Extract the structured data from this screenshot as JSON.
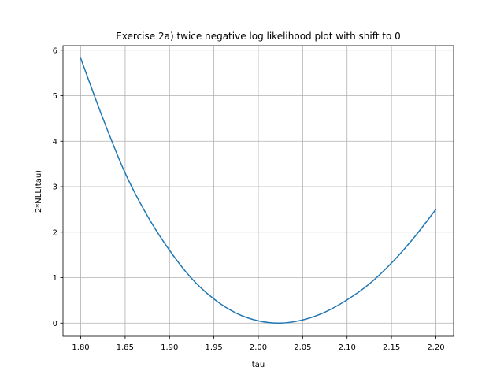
{
  "chart_data": {
    "type": "line",
    "title": "Exercise 2a) twice negative log likelihood plot with shift to 0",
    "xlabel": "tau",
    "ylabel": "2*NLL(tau)",
    "xlim": [
      1.78,
      2.22
    ],
    "ylim": [
      -0.29,
      6.1
    ],
    "xticks": [
      "1.80",
      "1.85",
      "1.90",
      "1.95",
      "2.00",
      "2.05",
      "2.10",
      "2.15",
      "2.20"
    ],
    "yticks": [
      "0",
      "1",
      "2",
      "3",
      "4",
      "5",
      "6"
    ],
    "grid": true,
    "series": [
      {
        "color": "#1f77b4",
        "x": [
          1.8,
          1.825,
          1.85,
          1.875,
          1.9,
          1.925,
          1.95,
          1.975,
          2.0,
          2.025,
          2.05,
          2.075,
          2.1,
          2.125,
          2.15,
          2.175,
          2.2
        ],
        "y": [
          5.82,
          4.5,
          3.3,
          2.36,
          1.6,
          0.98,
          0.53,
          0.22,
          0.05,
          0.0,
          0.07,
          0.24,
          0.51,
          0.86,
          1.32,
          1.87,
          2.5
        ]
      }
    ]
  }
}
